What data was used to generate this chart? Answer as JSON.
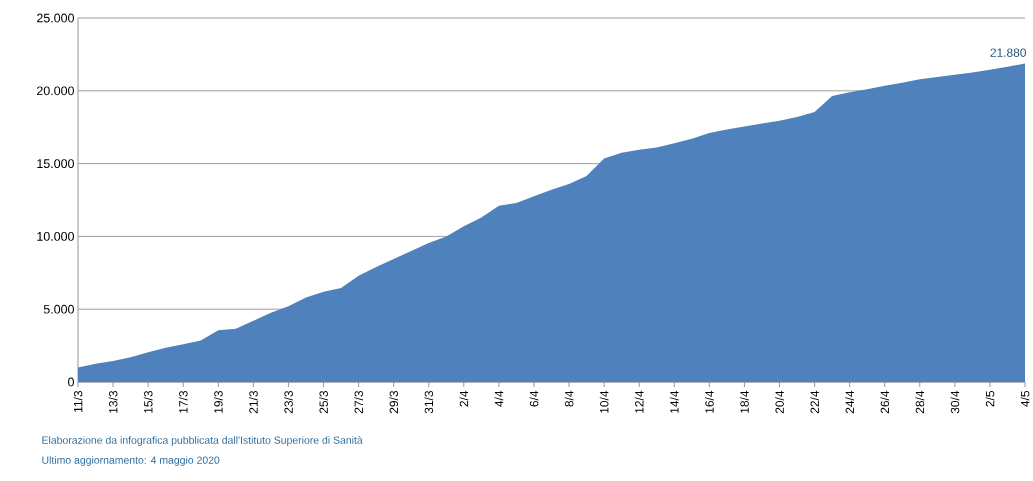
{
  "chart_data": {
    "type": "area",
    "categories": [
      "11/3",
      null,
      "13/3",
      null,
      "15/3",
      null,
      "17/3",
      null,
      "19/3",
      null,
      "21/3",
      null,
      "23/3",
      null,
      "25/3",
      null,
      "27/3",
      null,
      "29/3",
      null,
      "31/3",
      null,
      "2/4",
      null,
      "4/4",
      null,
      "6/4",
      null,
      "8/4",
      null,
      "10/4",
      null,
      "12/4",
      null,
      "14/4",
      null,
      "16/4",
      null,
      "18/4",
      null,
      "20/4",
      null,
      "22/4",
      null,
      "24/4",
      null,
      "26/4",
      null,
      "28/4",
      null,
      "30/4",
      null,
      "2/5",
      null,
      "4/5"
    ],
    "values": [
      1000,
      1250,
      1450,
      1700,
      2050,
      2350,
      2600,
      2850,
      3550,
      3650,
      4200,
      4750,
      5200,
      5800,
      6200,
      6450,
      7300,
      7900,
      8450,
      9000,
      9550,
      10000,
      10700,
      11300,
      12100,
      12300,
      12750,
      13200,
      13600,
      14150,
      15350,
      15750,
      15950,
      16100,
      16400,
      16700,
      17100,
      17350,
      17550,
      17750,
      17950,
      18200,
      18550,
      19650,
      19900,
      20100,
      20350,
      20550,
      20800,
      20950,
      21100,
      21250,
      21450,
      21650,
      21880
    ],
    "value_labels": [
      null,
      null,
      null,
      null,
      null,
      null,
      null,
      null,
      null,
      null,
      null,
      null,
      null,
      null,
      null,
      null,
      null,
      null,
      null,
      null,
      null,
      null,
      null,
      null,
      null,
      null,
      null,
      null,
      null,
      null,
      null,
      null,
      null,
      null,
      null,
      null,
      null,
      null,
      null,
      null,
      null,
      null,
      null,
      null,
      null,
      null,
      null,
      null,
      null,
      null,
      null,
      null,
      null,
      null,
      "21.880"
    ],
    "color": "#4f81bd",
    "ylim": [
      0,
      25000
    ],
    "yticks": [
      {
        "value": 0,
        "label": "0"
      },
      {
        "value": 5000,
        "label": "5.000"
      },
      {
        "value": 10000,
        "label": "10.000"
      },
      {
        "value": 15000,
        "label": "15.000"
      },
      {
        "value": 20000,
        "label": "20.000"
      },
      {
        "value": 25000,
        "label": "25.000"
      }
    ],
    "grid": "y",
    "annotations": [
      "Elaborazione da infografica pubblicata dall'Istituto Superiore di Sanità",
      "Ultimo aggiornamento: 4 maggio 2020"
    ]
  }
}
